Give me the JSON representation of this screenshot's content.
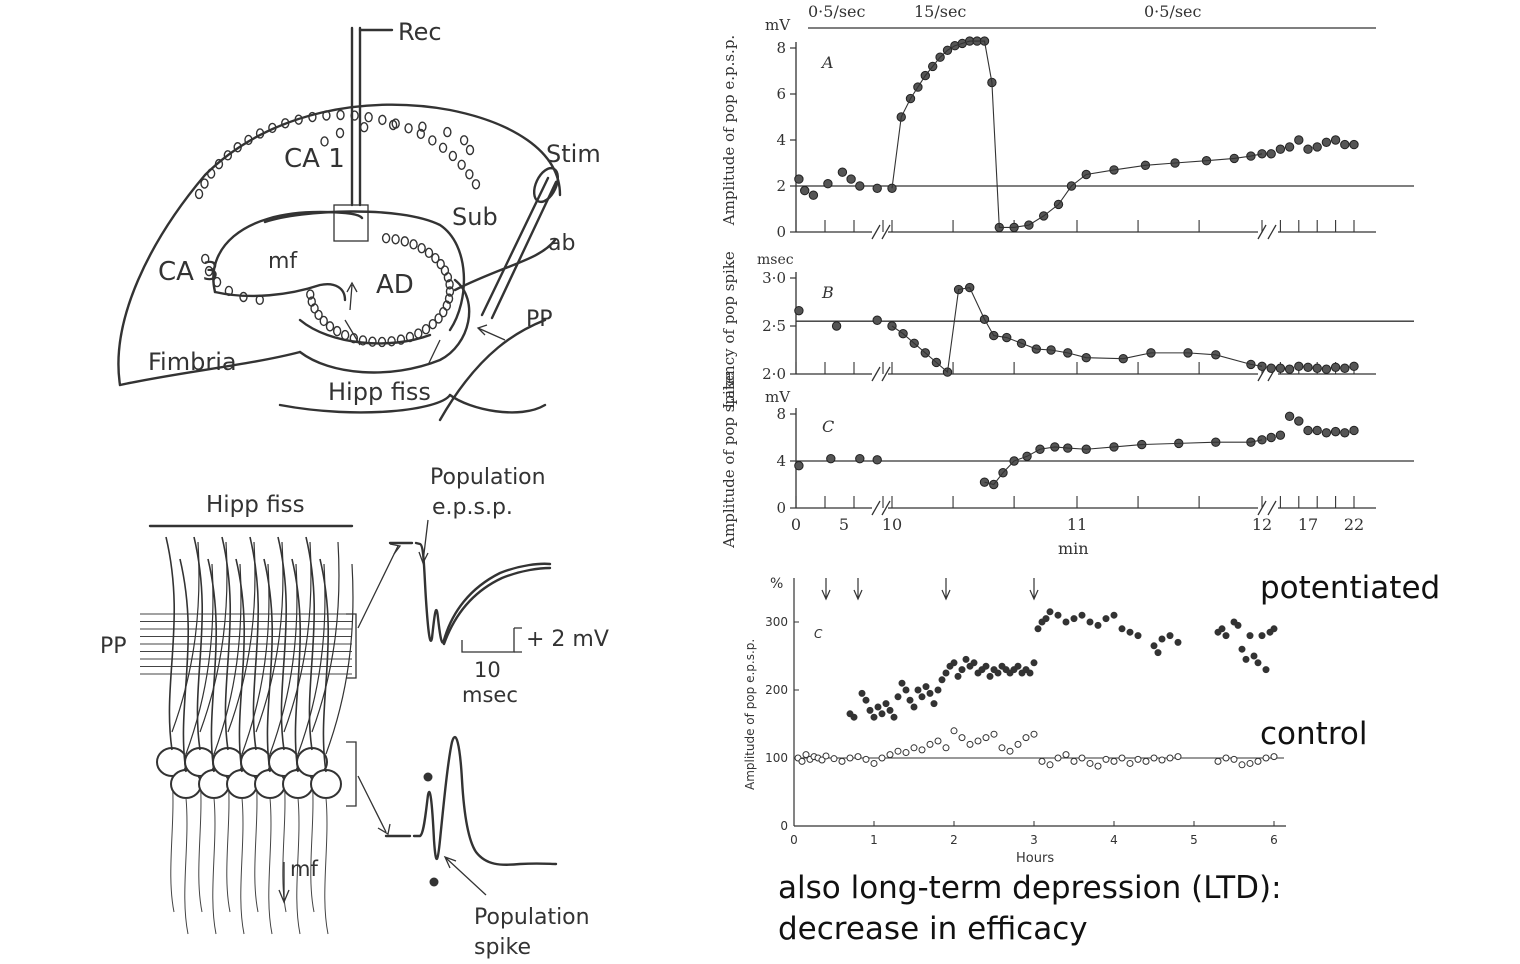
{
  "hippocampus_diagram": {
    "labels": {
      "rec": "Rec",
      "stim": "Stim",
      "ca1": "CA 1",
      "sub": "Sub",
      "ab": "ab",
      "ca3": "CA 3",
      "mf": "mf",
      "ad": "AD",
      "pp": "PP",
      "fimbria": "Fimbria",
      "hipp_fiss": "Hipp fiss"
    }
  },
  "neuron_diagram": {
    "labels": {
      "hipp_fiss": "Hipp fiss",
      "pp": "PP",
      "mf": "mf",
      "epsp_1": "Population",
      "epsp_2": "e.p.s.p.",
      "scale_v": "+ 2 mV",
      "scale_t1": "10",
      "scale_t2": "msec",
      "spike_1": "Population",
      "spike_2": "spike"
    }
  },
  "chart_data": [
    {
      "type": "scatter",
      "panel": "A",
      "ylabel": "Amplitude of pop e.p.s.p.",
      "yunit": "mV",
      "ylim": [
        0,
        8
      ],
      "yticks": [
        "0",
        "2",
        "4",
        "6",
        "8"
      ],
      "baseline": 2,
      "rate_labels": [
        "0·5/sec",
        "15/sec",
        "0·5/sec"
      ],
      "x": [
        0.2,
        0.6,
        1.2,
        2.2,
        3.2,
        3.8,
        4.4,
        5.6,
        10.0,
        10.05,
        10.1,
        10.14,
        10.18,
        10.22,
        10.26,
        10.3,
        10.34,
        10.38,
        10.42,
        10.46,
        10.5,
        10.54,
        10.58,
        10.66,
        10.74,
        10.82,
        10.9,
        10.97,
        11.05,
        11.2,
        11.37,
        11.53,
        11.7,
        11.85,
        11.94,
        12.0,
        13,
        14,
        15,
        16,
        17,
        18,
        19,
        20,
        21,
        22
      ],
      "y": [
        2.3,
        1.8,
        1.6,
        2.1,
        2.6,
        2.3,
        2.0,
        1.9,
        1.9,
        5.0,
        5.8,
        6.3,
        6.8,
        7.2,
        7.6,
        7.9,
        8.1,
        8.2,
        8.3,
        8.3,
        8.3,
        6.5,
        0.2,
        0.2,
        0.3,
        0.7,
        1.2,
        2.0,
        2.5,
        2.7,
        2.9,
        3.0,
        3.1,
        3.2,
        3.3,
        3.4,
        3.4,
        3.6,
        3.7,
        4.0,
        3.6,
        3.7,
        3.9,
        4.0,
        3.8,
        3.8
      ]
    },
    {
      "type": "scatter",
      "panel": "B",
      "ylabel": "Latency of pop spike",
      "yunit": "msec",
      "ylim": [
        2.0,
        3.0
      ],
      "yticks": [
        "2·0",
        "2·5",
        "3·0"
      ],
      "baseline": 2.55,
      "x": [
        0.2,
        2.8,
        5.6,
        10.0,
        10.06,
        10.12,
        10.18,
        10.24,
        10.3,
        10.36,
        10.42,
        10.5,
        10.55,
        10.62,
        10.7,
        10.78,
        10.86,
        10.95,
        11.05,
        11.25,
        11.4,
        11.6,
        11.75,
        11.94,
        12.0,
        13,
        14,
        15,
        16,
        17,
        18,
        19,
        20,
        21,
        22
      ],
      "y": [
        2.66,
        2.5,
        2.56,
        2.5,
        2.42,
        2.32,
        2.22,
        2.12,
        2.02,
        2.88,
        2.9,
        2.57,
        2.4,
        2.38,
        2.32,
        2.26,
        2.25,
        2.22,
        2.17,
        2.16,
        2.22,
        2.22,
        2.2,
        2.1,
        2.08,
        2.06,
        2.06,
        2.05,
        2.08,
        2.07,
        2.06,
        2.05,
        2.07,
        2.06,
        2.08
      ]
    },
    {
      "type": "scatter",
      "panel": "C",
      "ylabel": "Amplitude of pop spike",
      "yunit": "mV",
      "ylim": [
        0,
        8
      ],
      "yticks": [
        "0",
        "4",
        "8"
      ],
      "baseline": 4,
      "xlabel": "min",
      "xticks": [
        "0",
        "5",
        "10",
        "11",
        "12",
        "17",
        "22"
      ],
      "x": [
        0.2,
        2.4,
        4.4,
        5.6,
        10.5,
        10.55,
        10.6,
        10.66,
        10.73,
        10.8,
        10.88,
        10.95,
        11.05,
        11.2,
        11.35,
        11.55,
        11.75,
        11.94,
        12.0,
        13,
        14,
        15,
        16,
        17,
        18,
        19,
        20,
        21,
        22
      ],
      "y": [
        3.6,
        4.2,
        4.2,
        4.1,
        2.2,
        2.0,
        3.0,
        4.0,
        4.4,
        5.0,
        5.2,
        5.1,
        5.0,
        5.2,
        5.4,
        5.5,
        5.6,
        5.6,
        5.8,
        6.0,
        6.2,
        7.8,
        7.4,
        6.6,
        6.6,
        6.4,
        6.5,
        6.4,
        6.6
      ]
    },
    {
      "type": "scatter",
      "panel": "C",
      "xlabel": "Hours",
      "ylabel": "Amplitude of pop e.p.s.p.",
      "yunit": "%",
      "xlim": [
        0,
        6
      ],
      "ylim": [
        0,
        330
      ],
      "xticks": [
        "0",
        "1",
        "2",
        "3",
        "4",
        "5",
        "6"
      ],
      "yticks": [
        "0",
        "100",
        "200",
        "300"
      ],
      "baseline": 100,
      "arrows_hours": [
        0.4,
        0.8,
        1.9,
        3.0
      ],
      "series": [
        {
          "name": "potentiated",
          "x": [
            0.7,
            0.75,
            0.85,
            0.9,
            0.95,
            1.0,
            1.05,
            1.1,
            1.15,
            1.2,
            1.25,
            1.3,
            1.35,
            1.4,
            1.45,
            1.5,
            1.55,
            1.6,
            1.65,
            1.7,
            1.75,
            1.8,
            1.85,
            1.9,
            1.95,
            2.0,
            2.05,
            2.1,
            2.15,
            2.2,
            2.25,
            2.3,
            2.35,
            2.4,
            2.45,
            2.5,
            2.55,
            2.6,
            2.65,
            2.7,
            2.75,
            2.8,
            2.85,
            2.9,
            2.95,
            3.0,
            3.05,
            3.1,
            3.15,
            3.2,
            3.3,
            3.4,
            3.5,
            3.6,
            3.7,
            3.8,
            3.9,
            4.0,
            4.1,
            4.2,
            4.3,
            4.5,
            4.55,
            4.6,
            4.7,
            4.8,
            5.3,
            5.35,
            5.4,
            5.5,
            5.55,
            5.6,
            5.65,
            5.7,
            5.75,
            5.8,
            5.85,
            5.9,
            5.95,
            6.0
          ],
          "y": [
            165,
            160,
            195,
            185,
            170,
            160,
            175,
            165,
            180,
            170,
            160,
            190,
            210,
            200,
            185,
            175,
            200,
            190,
            205,
            195,
            180,
            200,
            215,
            225,
            235,
            240,
            220,
            230,
            245,
            235,
            240,
            225,
            230,
            235,
            220,
            230,
            225,
            235,
            230,
            225,
            230,
            235,
            225,
            230,
            225,
            240,
            290,
            300,
            305,
            315,
            310,
            300,
            305,
            310,
            300,
            295,
            305,
            310,
            290,
            285,
            280,
            265,
            255,
            275,
            280,
            270,
            285,
            290,
            280,
            300,
            295,
            260,
            245,
            280,
            250,
            240,
            280,
            230,
            285,
            290
          ]
        },
        {
          "name": "control",
          "x": [
            0.05,
            0.1,
            0.15,
            0.2,
            0.25,
            0.3,
            0.35,
            0.4,
            0.5,
            0.6,
            0.7,
            0.8,
            0.9,
            1.0,
            1.1,
            1.2,
            1.3,
            1.4,
            1.5,
            1.6,
            1.7,
            1.8,
            1.9,
            2.0,
            2.1,
            2.2,
            2.3,
            2.4,
            2.5,
            2.6,
            2.7,
            2.8,
            2.9,
            3.0,
            3.1,
            3.2,
            3.3,
            3.4,
            3.5,
            3.6,
            3.7,
            3.8,
            3.9,
            4.0,
            4.1,
            4.2,
            4.3,
            4.4,
            4.5,
            4.6,
            4.7,
            4.8,
            5.3,
            5.4,
            5.5,
            5.6,
            5.7,
            5.8,
            5.9,
            6.0
          ],
          "y": [
            100,
            95,
            105,
            98,
            102,
            100,
            97,
            103,
            99,
            95,
            100,
            102,
            98,
            92,
            100,
            105,
            110,
            108,
            115,
            112,
            120,
            125,
            115,
            140,
            130,
            120,
            125,
            130,
            135,
            115,
            110,
            120,
            130,
            135,
            95,
            90,
            100,
            105,
            95,
            100,
            92,
            88,
            98,
            95,
            100,
            92,
            98,
            95,
            100,
            97,
            100,
            102,
            95,
            100,
            98,
            90,
            92,
            95,
            100,
            102
          ]
        }
      ]
    }
  ],
  "annotations": {
    "potentiated": "potentiated",
    "control": "control",
    "ltd_line1": "also long-term depression (LTD):",
    "ltd_line2": "decrease in efficacy"
  }
}
